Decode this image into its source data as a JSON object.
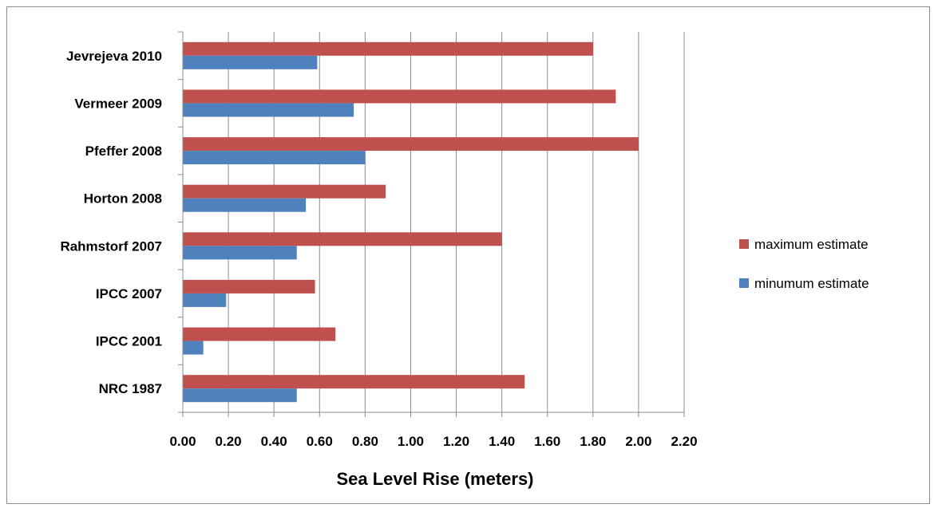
{
  "chart_data": {
    "type": "bar",
    "orientation": "horizontal",
    "categories": [
      "NRC 1987",
      "IPCC 2001",
      "IPCC 2007",
      "Rahmstorf 2007",
      "Horton 2008",
      "Pfeffer 2008",
      "Vermeer 2009",
      "Jevrejeva 2010"
    ],
    "series": [
      {
        "name": "maximum estimate",
        "color": "#c0504d",
        "values": [
          1.5,
          0.67,
          0.58,
          1.4,
          0.89,
          2.0,
          1.9,
          1.8
        ]
      },
      {
        "name": "minumum estimate",
        "color": "#4f81bd",
        "values": [
          0.5,
          0.09,
          0.19,
          0.5,
          0.54,
          0.8,
          0.75,
          0.59
        ]
      }
    ],
    "xlabel": "Sea Level Rise (meters)",
    "xlim": [
      0,
      2.2
    ],
    "xticks": [
      "0.00",
      "0.20",
      "0.40",
      "0.60",
      "0.80",
      "1.00",
      "1.20",
      "1.40",
      "1.60",
      "1.80",
      "2.00",
      "2.20"
    ],
    "grid": "vertical",
    "legend_position": "right"
  }
}
